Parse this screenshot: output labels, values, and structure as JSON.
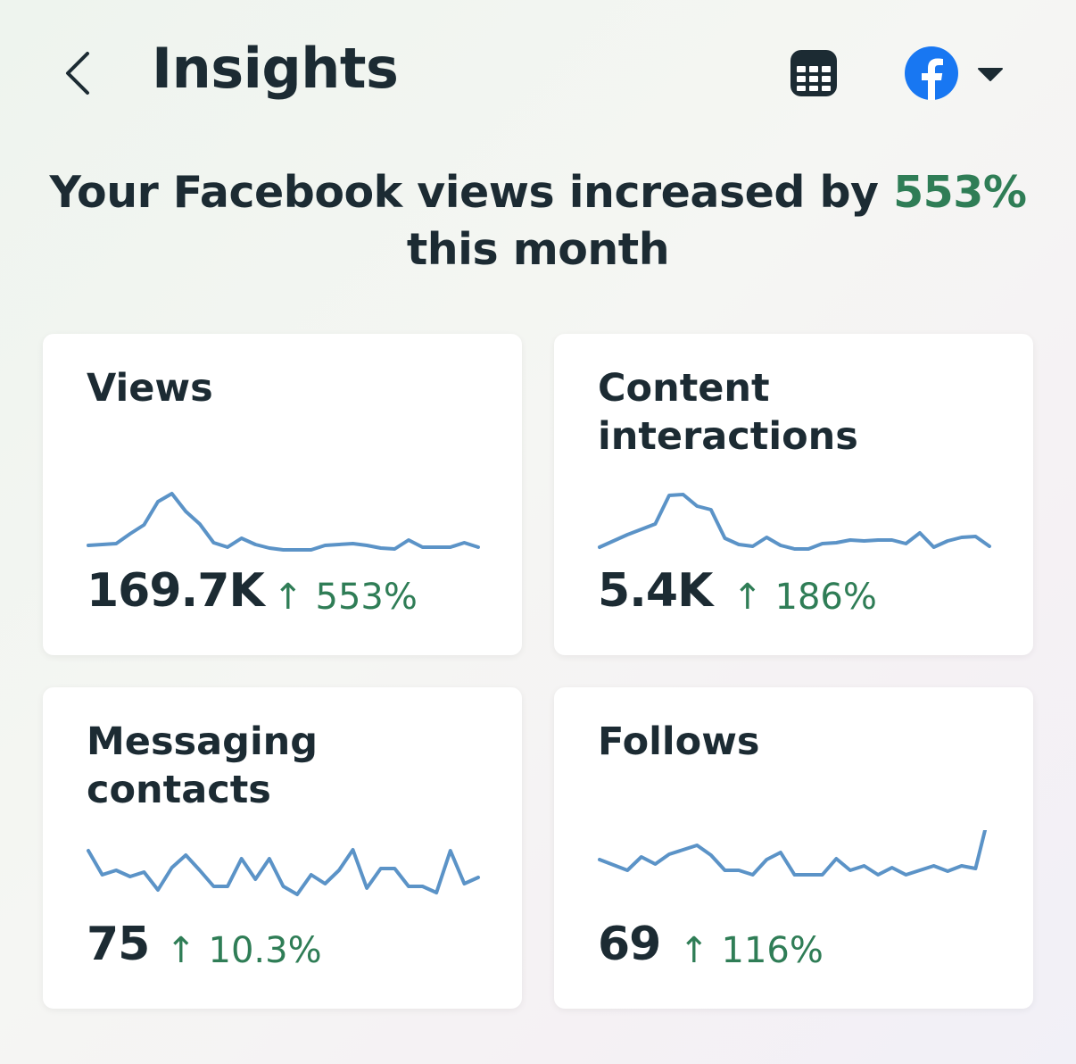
{
  "header": {
    "title": "Insights",
    "back_icon": "chevron-left-icon",
    "calendar_icon": "calendar-icon",
    "account_icon": "facebook-icon",
    "dropdown_icon": "caret-down-icon"
  },
  "headline": {
    "prefix": "Your Facebook views increased by ",
    "value": "553%",
    "suffix": "this month"
  },
  "colors": {
    "accent_green": "#2f7d56",
    "sparkline": "#5b93c7",
    "facebook_blue": "#1877f2"
  },
  "cards": [
    {
      "title": "Views",
      "value": "169.7K",
      "change": "553%",
      "direction": "up",
      "sparkline": [
        19,
        20,
        21,
        32,
        42,
        68,
        77,
        57,
        43,
        22,
        17,
        27,
        20,
        16,
        14,
        14,
        14,
        19,
        20,
        21,
        19,
        16,
        15,
        25,
        17,
        17,
        17,
        22,
        17
      ]
    },
    {
      "title": "Content interactions",
      "value": "5.4K",
      "change": "186%",
      "direction": "up",
      "sparkline": [
        17,
        24,
        31,
        37,
        43,
        75,
        76,
        63,
        59,
        27,
        20,
        18,
        28,
        19,
        15,
        15,
        21,
        22,
        25,
        24,
        25,
        25,
        21,
        33,
        17,
        24,
        28,
        29,
        18
      ]
    },
    {
      "title": "Messaging contacts",
      "value": "75",
      "change": "10.3%",
      "direction": "up",
      "sparkline": [
        77,
        50,
        55,
        48,
        53,
        33,
        58,
        72,
        55,
        37,
        37,
        68,
        45,
        68,
        37,
        28,
        50,
        40,
        55,
        78,
        35,
        57,
        57,
        37,
        37,
        30,
        77,
        40,
        47
      ]
    },
    {
      "title": "Follows",
      "value": "69",
      "change": "116%",
      "direction": "up",
      "sparkline": [
        67,
        61,
        55,
        70,
        62,
        73,
        78,
        83,
        72,
        55,
        55,
        50,
        67,
        75,
        50,
        50,
        50,
        68,
        55,
        60,
        50,
        58,
        50,
        55,
        60,
        54,
        60,
        57,
        120
      ]
    }
  ]
}
